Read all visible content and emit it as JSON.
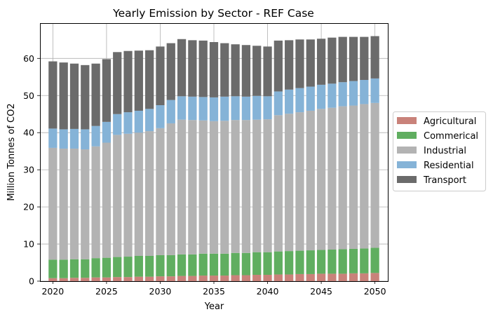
{
  "chart_data": {
    "type": "bar",
    "stacked": true,
    "title": "Yearly Emission by Sector - REF Case",
    "xlabel": "Year",
    "ylabel": "Million Tonnes of CO2",
    "x": [
      2020,
      2021,
      2022,
      2023,
      2024,
      2025,
      2026,
      2027,
      2028,
      2029,
      2030,
      2031,
      2032,
      2033,
      2034,
      2035,
      2036,
      2037,
      2038,
      2039,
      2040,
      2041,
      2042,
      2043,
      2044,
      2045,
      2046,
      2047,
      2048,
      2049,
      2050
    ],
    "xticks": [
      2020,
      2025,
      2030,
      2035,
      2040,
      2045,
      2050
    ],
    "xlim": [
      2018.8,
      2051.2
    ],
    "ylim": [
      0,
      69.5
    ],
    "yticks": [
      0,
      10,
      20,
      30,
      40,
      50,
      60
    ],
    "grid": true,
    "legend_position": "right",
    "series": [
      {
        "name": "Agricultural",
        "color": "#c9827a",
        "values": [
          0.8,
          0.8,
          0.9,
          0.9,
          1.0,
          1.0,
          1.1,
          1.1,
          1.2,
          1.2,
          1.3,
          1.3,
          1.4,
          1.4,
          1.5,
          1.5,
          1.5,
          1.6,
          1.6,
          1.7,
          1.7,
          1.8,
          1.8,
          1.9,
          1.9,
          2.0,
          2.0,
          2.0,
          2.1,
          2.1,
          2.2
        ]
      },
      {
        "name": "Commerical",
        "color": "#60ae60",
        "values": [
          5.0,
          5.0,
          5.0,
          5.0,
          5.2,
          5.3,
          5.4,
          5.5,
          5.6,
          5.6,
          5.7,
          5.7,
          5.8,
          5.8,
          5.9,
          5.9,
          5.9,
          6.0,
          6.0,
          6.1,
          6.1,
          6.2,
          6.3,
          6.3,
          6.4,
          6.4,
          6.5,
          6.6,
          6.6,
          6.7,
          6.8
        ]
      },
      {
        "name": "Industrial",
        "color": "#b3b3b3",
        "values": [
          30.1,
          29.9,
          29.8,
          29.6,
          30.1,
          31.0,
          32.9,
          33.1,
          33.2,
          33.6,
          34.2,
          35.5,
          36.3,
          36.2,
          35.9,
          35.7,
          35.8,
          35.8,
          35.8,
          35.7,
          35.8,
          36.7,
          37.0,
          37.3,
          37.6,
          38.0,
          38.2,
          38.5,
          38.6,
          38.9,
          39.0
        ]
      },
      {
        "name": "Residential",
        "color": "#85b3d7",
        "values": [
          5.2,
          5.2,
          5.3,
          5.4,
          5.5,
          5.6,
          5.6,
          5.8,
          5.9,
          6.0,
          6.2,
          6.3,
          6.3,
          6.3,
          6.3,
          6.4,
          6.5,
          6.4,
          6.3,
          6.4,
          6.2,
          6.4,
          6.5,
          6.5,
          6.5,
          6.5,
          6.5,
          6.5,
          6.6,
          6.5,
          6.6
        ]
      },
      {
        "name": "Transport",
        "color": "#6b6b6b",
        "values": [
          18.1,
          18.0,
          17.6,
          17.3,
          16.8,
          16.9,
          16.7,
          16.5,
          16.2,
          15.8,
          15.8,
          15.3,
          15.4,
          15.2,
          15.2,
          14.9,
          14.4,
          14.0,
          13.9,
          13.5,
          13.4,
          13.7,
          13.3,
          13.1,
          12.7,
          12.4,
          12.4,
          12.2,
          11.9,
          11.6,
          11.4
        ]
      }
    ]
  }
}
